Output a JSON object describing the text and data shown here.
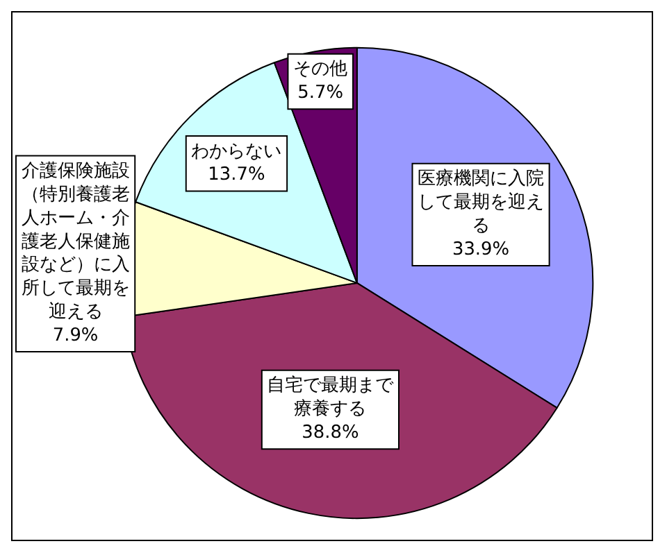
{
  "chart_data": {
    "type": "pie",
    "categories": [
      "医療機関に入院して最期を迎える",
      "自宅で最期まで療養する",
      "介護保険施設（特別養護老人ホーム・介護老人保健施設など）に入所して最期を迎える",
      "わからない",
      "その他"
    ],
    "values": [
      33.9,
      38.8,
      7.9,
      13.7,
      5.7
    ],
    "colors": [
      "#9999ff",
      "#993366",
      "#ffffcc",
      "#ccffff",
      "#660066"
    ],
    "value_labels": [
      "33.9%",
      "38.8%",
      "7.9%",
      "13.7%",
      "5.7%"
    ],
    "legend": false
  }
}
